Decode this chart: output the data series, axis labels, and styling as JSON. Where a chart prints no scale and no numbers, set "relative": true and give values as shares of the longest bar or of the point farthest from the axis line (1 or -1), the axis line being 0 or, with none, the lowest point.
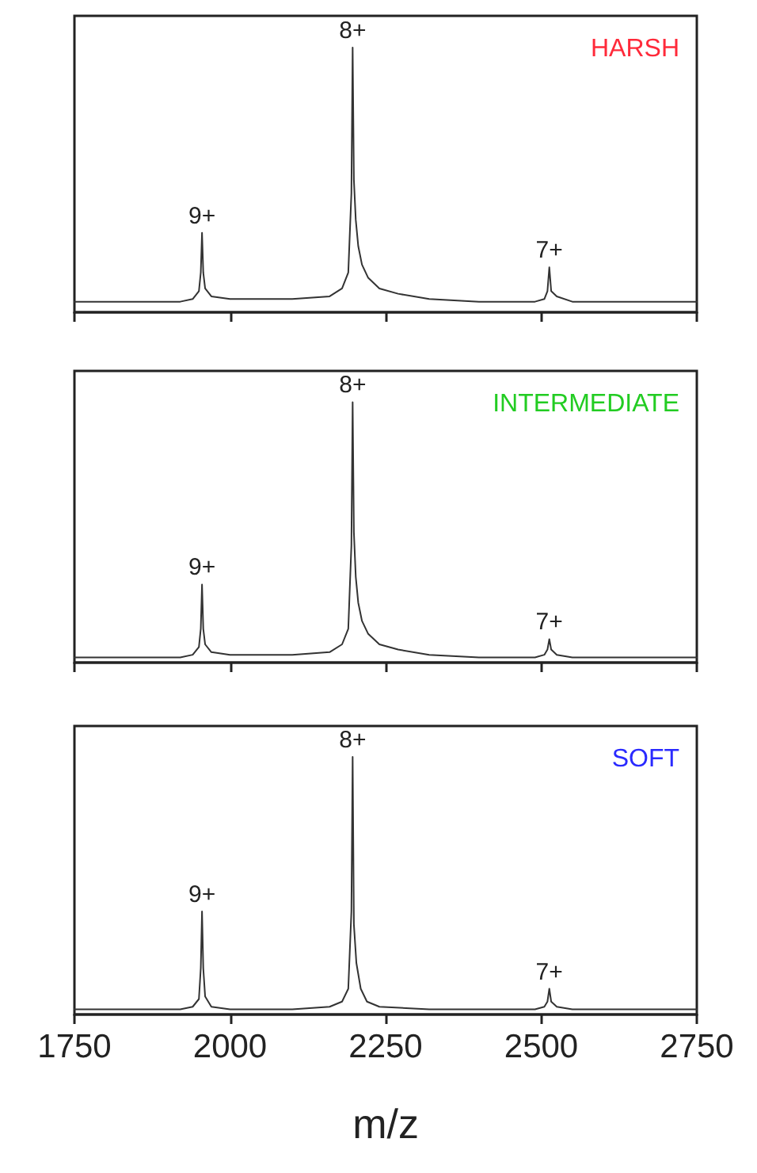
{
  "chart_data": [
    {
      "type": "line",
      "title": "HARSH",
      "relative": true,
      "xlim": [
        1750,
        2750
      ],
      "xticks": [
        1750,
        2000,
        2250,
        2500,
        2750
      ],
      "tick_labels": false,
      "grid": false,
      "legend": false,
      "marker": "none",
      "line_style": "solid",
      "series": [
        {
          "color": "#333333",
          "x": [
            1750,
            1850,
            1920,
            1940,
            1950,
            1953,
            1955,
            1957,
            1960,
            1970,
            2000,
            2100,
            2160,
            2180,
            2190,
            2195,
            2197,
            2199,
            2202,
            2206,
            2212,
            2222,
            2240,
            2270,
            2320,
            2400,
            2490,
            2505,
            2510,
            2513,
            2516,
            2525,
            2550,
            2650,
            2700,
            2750
          ],
          "values": [
            0.04,
            0.04,
            0.04,
            0.05,
            0.08,
            0.15,
            0.3,
            0.15,
            0.09,
            0.06,
            0.05,
            0.05,
            0.06,
            0.09,
            0.15,
            0.45,
            1,
            0.5,
            0.35,
            0.25,
            0.18,
            0.13,
            0.09,
            0.07,
            0.05,
            0.04,
            0.04,
            0.05,
            0.08,
            0.17,
            0.08,
            0.06,
            0.04,
            0.04,
            0.04,
            0.04
          ]
        }
      ],
      "annotations": [
        {
          "text": "9+",
          "x": 1955,
          "y": 0.3
        },
        {
          "text": "8+",
          "x": 2197,
          "y": 1
        },
        {
          "text": "7+",
          "x": 2513,
          "y": 0.17
        }
      ]
    },
    {
      "type": "line",
      "title": "INTERMEDIATE",
      "relative": true,
      "xlim": [
        1750,
        2750
      ],
      "xticks": [
        1750,
        2000,
        2250,
        2500,
        2750
      ],
      "tick_labels": false,
      "grid": false,
      "legend": false,
      "marker": "none",
      "line_style": "solid",
      "series": [
        {
          "color": "#333333",
          "x": [
            1750,
            1850,
            1920,
            1940,
            1950,
            1953,
            1955,
            1957,
            1960,
            1970,
            2000,
            2100,
            2160,
            2180,
            2190,
            2195,
            2197,
            2199,
            2202,
            2206,
            2212,
            2222,
            2240,
            2270,
            2320,
            2400,
            2490,
            2505,
            2510,
            2513,
            2516,
            2525,
            2550,
            2650,
            2700,
            2750
          ],
          "values": [
            0.02,
            0.02,
            0.02,
            0.03,
            0.06,
            0.13,
            0.3,
            0.13,
            0.07,
            0.04,
            0.03,
            0.03,
            0.04,
            0.07,
            0.13,
            0.45,
            1,
            0.5,
            0.33,
            0.23,
            0.16,
            0.11,
            0.07,
            0.05,
            0.03,
            0.02,
            0.02,
            0.03,
            0.05,
            0.09,
            0.05,
            0.03,
            0.02,
            0.02,
            0.02,
            0.02
          ]
        }
      ],
      "annotations": [
        {
          "text": "9+",
          "x": 1955,
          "y": 0.3
        },
        {
          "text": "8+",
          "x": 2197,
          "y": 1
        },
        {
          "text": "7+",
          "x": 2513,
          "y": 0.09
        }
      ]
    },
    {
      "type": "line",
      "title": "SOFT",
      "xlabel": "m/z",
      "relative": true,
      "xlim": [
        1750,
        2750
      ],
      "xticks": [
        1750,
        2000,
        2250,
        2500,
        2750
      ],
      "tick_labels": "x",
      "grid": false,
      "legend": false,
      "marker": "none",
      "line_style": "solid",
      "series": [
        {
          "color": "#333333",
          "x": [
            1750,
            1850,
            1920,
            1940,
            1950,
            1953,
            1955,
            1957,
            1960,
            1970,
            2000,
            2100,
            2160,
            2180,
            2190,
            2195,
            2197,
            2199,
            2203,
            2210,
            2220,
            2240,
            2320,
            2400,
            2490,
            2505,
            2510,
            2513,
            2516,
            2525,
            2550,
            2650,
            2700,
            2750
          ],
          "values": [
            0.02,
            0.02,
            0.02,
            0.03,
            0.06,
            0.18,
            0.4,
            0.18,
            0.07,
            0.03,
            0.02,
            0.02,
            0.03,
            0.05,
            0.1,
            0.4,
            1,
            0.35,
            0.2,
            0.1,
            0.05,
            0.03,
            0.02,
            0.02,
            0.02,
            0.03,
            0.05,
            0.1,
            0.05,
            0.03,
            0.02,
            0.02,
            0.02,
            0.02
          ]
        }
      ],
      "annotations": [
        {
          "text": "9+",
          "x": 1955,
          "y": 0.4
        },
        {
          "text": "8+",
          "x": 2197,
          "y": 1
        },
        {
          "text": "7+",
          "x": 2513,
          "y": 0.1
        }
      ]
    }
  ]
}
